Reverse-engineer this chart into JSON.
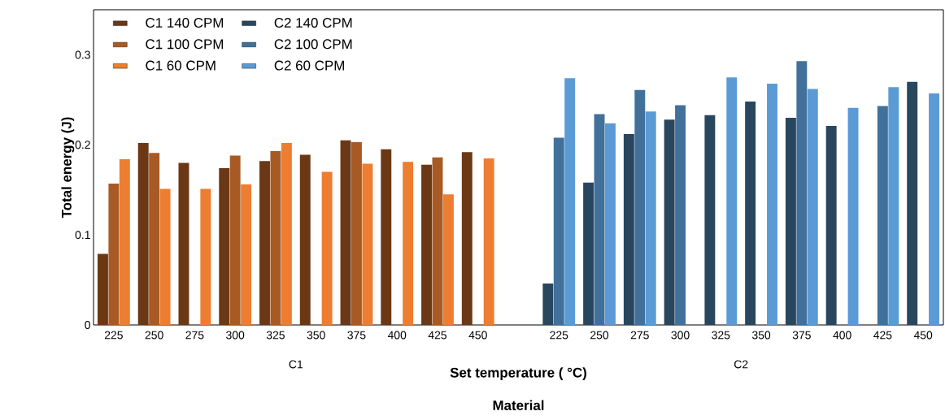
{
  "chart_data": {
    "type": "bar",
    "categories": [
      "225",
      "250",
      "275",
      "300",
      "325",
      "350",
      "375",
      "400",
      "425",
      "450",
      null,
      "225",
      "250",
      "275",
      "300",
      "325",
      "350",
      "375",
      "400",
      "425",
      "450"
    ],
    "series": [
      {
        "name": "C1 140 CPM",
        "color": "#6b3816",
        "values": [
          0.079,
          0.202,
          0.18,
          0.174,
          0.182,
          0.189,
          0.205,
          0.195,
          0.178,
          0.192,
          null,
          null,
          null,
          null,
          null,
          null,
          null,
          null,
          null,
          null,
          null
        ]
      },
      {
        "name": "C1 100 CPM",
        "color": "#a85a24",
        "values": [
          0.157,
          0.191,
          null,
          0.188,
          0.193,
          null,
          0.203,
          null,
          0.186,
          null,
          null,
          null,
          null,
          null,
          null,
          null,
          null,
          null,
          null,
          null,
          null
        ]
      },
      {
        "name": "C1 60 CPM",
        "color": "#ed7d31",
        "values": [
          0.184,
          0.151,
          0.151,
          0.156,
          0.202,
          0.17,
          0.179,
          0.181,
          0.145,
          0.185,
          null,
          null,
          null,
          null,
          null,
          null,
          null,
          null,
          null,
          null,
          null
        ]
      },
      {
        "name": "C2 140 CPM",
        "color": "#29465f",
        "values": [
          null,
          null,
          null,
          null,
          null,
          null,
          null,
          null,
          null,
          null,
          null,
          0.046,
          0.158,
          0.212,
          0.228,
          0.233,
          0.248,
          0.23,
          0.221,
          null,
          0.27
        ]
      },
      {
        "name": "C2 100 CPM",
        "color": "#41709a",
        "values": [
          null,
          null,
          null,
          null,
          null,
          null,
          null,
          null,
          null,
          null,
          null,
          0.208,
          0.234,
          0.261,
          0.244,
          null,
          null,
          0.293,
          null,
          0.243,
          null
        ]
      },
      {
        "name": "C2 60 CPM",
        "color": "#5b9bd5",
        "values": [
          null,
          null,
          null,
          null,
          null,
          null,
          null,
          null,
          null,
          null,
          null,
          0.274,
          0.224,
          0.237,
          null,
          0.275,
          0.268,
          0.262,
          0.241,
          0.264,
          0.257
        ]
      }
    ],
    "ylim": [
      0,
      0.35
    ],
    "yticks": [
      0,
      0.1,
      0.2,
      0.3
    ],
    "xlabel": "Set temperature ( °C)",
    "ylabel": "Total energy (J)",
    "annotations": [
      "C1",
      "C2",
      "Material"
    ],
    "legend": "top left"
  }
}
